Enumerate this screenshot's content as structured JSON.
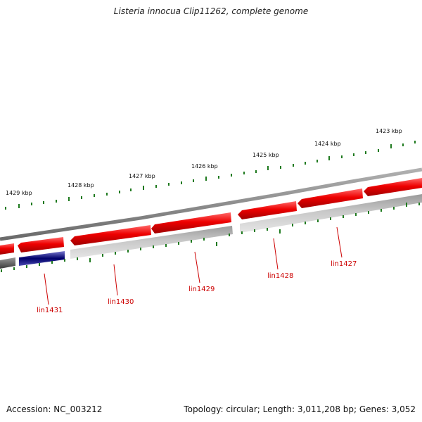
{
  "title": "Listeria innocua Clip11262, complete genome",
  "accession": "Accession: NC_003212",
  "summary": "Topology: circular; Length: 3,011,208 bp; Genes: 3,052",
  "scale_labels": [
    "1429 kbp",
    "1428 kbp",
    "1427 kbp",
    "1426 kbp",
    "1425 kbp",
    "1424 kbp",
    "1423 kbp"
  ],
  "gene_labels": [
    "lin1431",
    "lin1430",
    "lin1429",
    "lin1428",
    "lin1427"
  ],
  "colors": {
    "forward_cds": "#e00000",
    "reverse_cds": "#b8b8b8",
    "rna_feature": "#1a1a8c",
    "backbone": "#8a8a8a",
    "tick": "#1f7a1f",
    "label": "#cc0000"
  }
}
